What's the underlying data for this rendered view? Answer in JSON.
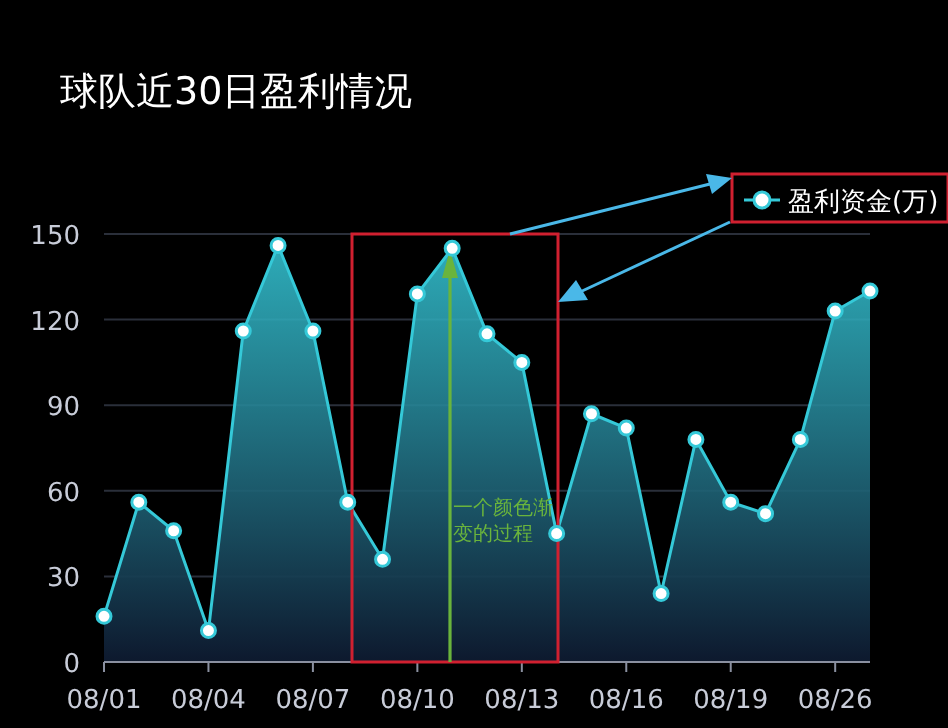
{
  "chart_data": {
    "type": "area",
    "title": "球队近30日盈利情况",
    "categories": [
      "08/01",
      null,
      null,
      "08/04",
      null,
      null,
      "08/07",
      null,
      null,
      "08/10",
      null,
      null,
      "08/13",
      null,
      null,
      "08/16",
      null,
      null,
      "08/19",
      null,
      null,
      "08/26",
      null
    ],
    "series": [
      {
        "name": "盈利资金(万)",
        "color": "#35c9d8",
        "values": [
          16,
          56,
          46,
          11,
          116,
          146,
          116,
          56,
          36,
          129,
          145,
          115,
          105,
          45,
          87,
          82,
          24,
          78,
          56,
          52,
          78,
          123,
          130
        ]
      }
    ],
    "ylim": [
      0,
      150
    ],
    "yticks": [
      0,
      30,
      60,
      90,
      120,
      150
    ],
    "grid": "y",
    "legend": "top right",
    "marker": "circle",
    "annotations": [
      "一个颜色渐变的过程"
    ]
  }
}
